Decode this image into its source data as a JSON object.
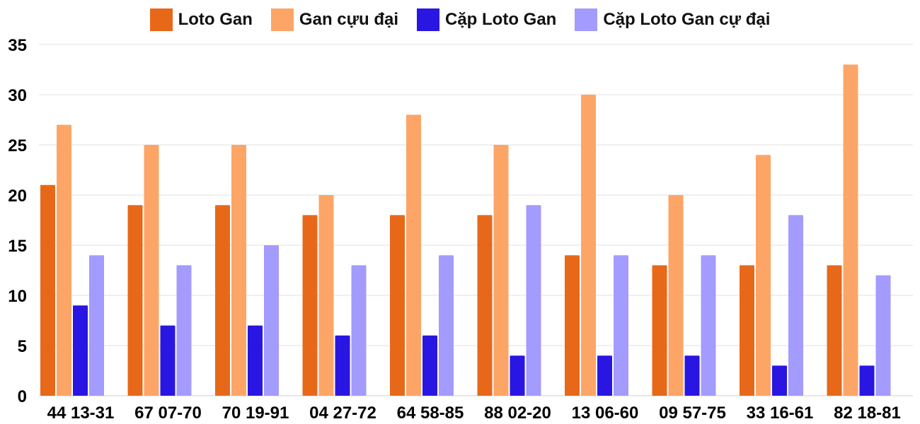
{
  "chart_data": {
    "type": "bar",
    "title": "",
    "xlabel": "",
    "ylabel": "",
    "ylim": [
      0,
      35
    ],
    "yticks": [
      0,
      5,
      10,
      15,
      20,
      25,
      30,
      35
    ],
    "grid": true,
    "legend_position": "top",
    "categories": [
      "44 13-31",
      "67 07-70",
      "70 19-91",
      "04 27-72",
      "64 58-85",
      "88 02-20",
      "13 06-60",
      "09 57-75",
      "33 16-61",
      "82 18-81"
    ],
    "series": [
      {
        "name": "Loto Gan",
        "color": "#e8681a",
        "values": [
          21,
          19,
          19,
          18,
          18,
          18,
          14,
          13,
          13,
          13
        ]
      },
      {
        "name": "Gan cựu đại",
        "color": "#fda567",
        "values": [
          27,
          25,
          25,
          20,
          28,
          25,
          30,
          20,
          24,
          33
        ]
      },
      {
        "name": "Cặp Loto Gan",
        "color": "#2a16e2",
        "values": [
          9,
          7,
          7,
          6,
          6,
          4,
          4,
          4,
          3,
          3
        ]
      },
      {
        "name": "Cặp Loto Gan cự đại",
        "color": "#a39bfd",
        "values": [
          14,
          13,
          15,
          13,
          14,
          19,
          14,
          14,
          18,
          12
        ]
      }
    ]
  }
}
